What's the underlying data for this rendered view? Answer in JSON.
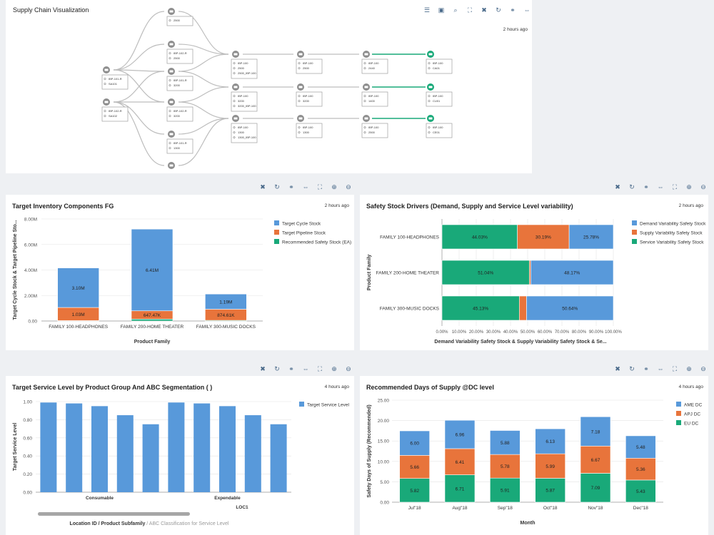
{
  "supply_chain": {
    "title": "Supply Chain Visualization",
    "timestamp": "2 hours ago",
    "toolbar_icons": [
      "list-icon",
      "select-icon",
      "zoom-icon",
      "fullscreen-icon",
      "delete-icon",
      "refresh-icon",
      "link-icon",
      "split-icon"
    ],
    "nodes": [
      {
        "id": "n_top",
        "lines": [
          "2500"
        ]
      },
      {
        "id": "n_b1",
        "lines": [
          "IBP-102-R",
          "2500"
        ]
      },
      {
        "id": "n_b2",
        "lines": [
          "IBP-101-R",
          "3200"
        ]
      },
      {
        "id": "n_b3",
        "lines": [
          "IBP-102-R",
          "3200"
        ]
      },
      {
        "id": "n_b4",
        "lines": [
          "IBP-101-R",
          "1300"
        ]
      },
      {
        "id": "n_a1",
        "lines": [
          "IBP-101-R",
          "SA101"
        ]
      },
      {
        "id": "n_a2",
        "lines": [
          "IBP-102-R",
          "SA102"
        ]
      },
      {
        "id": "n_c1",
        "lines": [
          "IBP-100",
          "2500",
          "2500_IBP-100"
        ]
      },
      {
        "id": "n_c2",
        "lines": [
          "IBP-100",
          "3200",
          "3200_IBP-100"
        ]
      },
      {
        "id": "n_c3",
        "lines": [
          "IBP-100",
          "1300",
          "1300_IBP-100"
        ]
      },
      {
        "id": "n_d1",
        "lines": [
          "IBP-100",
          "2500"
        ]
      },
      {
        "id": "n_d2",
        "lines": [
          "IBP-100",
          "3200"
        ]
      },
      {
        "id": "n_d3",
        "lines": [
          "IBP-100",
          "1300"
        ]
      },
      {
        "id": "n_e1",
        "lines": [
          "IBP-100",
          "2440"
        ]
      },
      {
        "id": "n_e2",
        "lines": [
          "IBP-100",
          "1400"
        ]
      },
      {
        "id": "n_e3",
        "lines": [
          "IBP-100",
          "2500"
        ]
      },
      {
        "id": "n_f1",
        "lines": [
          "IBP-100",
          "CA01"
        ]
      },
      {
        "id": "n_f2",
        "lines": [
          "IBP-100",
          "CU01"
        ]
      },
      {
        "id": "n_f3",
        "lines": [
          "IBP-100",
          "CE01"
        ]
      }
    ]
  },
  "panel_toolbar_icons": [
    "delete-icon",
    "refresh-icon",
    "link-icon",
    "split-icon",
    "fullscreen-icon",
    "zoom-in-icon",
    "zoom-out-icon"
  ],
  "colors": {
    "blue": "#5899da",
    "orange": "#e8743b",
    "green": "#19a979",
    "gray": "#a6a6a6"
  },
  "chart_data": [
    {
      "id": "target_inventory",
      "type": "bar",
      "stacked": true,
      "title": "Target Inventory Components FG",
      "timestamp": "2 hours ago",
      "categories": [
        "FAMILY 100-HEADPHONES",
        "FAMILY 200-HOME THEATER",
        "FAMILY 300-MUSIC DOCKS"
      ],
      "series": [
        {
          "name": "Recommended Safety Stock (EA)",
          "color": "#19a979",
          "values": [
            0.03,
            0.15,
            0.05
          ],
          "labels": [
            "",
            "",
            ""
          ]
        },
        {
          "name": "Target Pipeline Stock",
          "color": "#e8743b",
          "values": [
            1.03,
            0.64747,
            0.87461
          ],
          "labels": [
            "1.03M",
            "647.47K",
            "874.61K"
          ]
        },
        {
          "name": "Target Cycle Stock",
          "color": "#5899da",
          "values": [
            3.1,
            6.41,
            1.19
          ],
          "labels": [
            "3.10M",
            "6.41M",
            "1.19M"
          ]
        }
      ],
      "legend_order": [
        "Target Cycle Stock",
        "Target Pipeline Stock",
        "Recommended Safety Stock (EA)"
      ],
      "ylim": [
        0,
        8
      ],
      "yticks": [
        "0.00",
        "2.00M",
        "4.00M",
        "6.00M",
        "8.00M"
      ],
      "xlabel": "Product Family",
      "ylabel": "Target Cycle Stock & Target Pipeline Sto..."
    },
    {
      "id": "safety_stock_drivers",
      "type": "bar",
      "orientation": "horizontal",
      "stacked": true,
      "title": "Safety Stock Drivers (Demand, Supply and Service Level variability)",
      "timestamp": "2 hours ago",
      "categories": [
        "FAMILY 100-HEADPHONES",
        "FAMILY 200-HOME THEATER",
        "FAMILY 300-MUSIC DOCKS"
      ],
      "series": [
        {
          "name": "Service Variability Safety Stock",
          "color": "#19a979",
          "values": [
            44.03,
            51.04,
            45.13
          ],
          "labels": [
            "44.03%",
            "51.04%",
            "45.13%"
          ]
        },
        {
          "name": "Supply Variability Safety Stock",
          "color": "#e8743b",
          "values": [
            30.19,
            0.79,
            4.23
          ],
          "labels": [
            "30.19%",
            "",
            ""
          ]
        },
        {
          "name": "Demand Variability Safety Stock",
          "color": "#5899da",
          "values": [
            25.78,
            48.17,
            50.64
          ],
          "labels": [
            "25.78%",
            "48.17%",
            "50.64%"
          ]
        }
      ],
      "legend_order": [
        "Demand Variability Safety Stock",
        "Supply Variability Safety Stock",
        "Service Variability Safety Stock"
      ],
      "xlim": [
        0,
        100
      ],
      "xticks": [
        "0.00%",
        "10.00%",
        "20.00%",
        "30.00%",
        "40.00%",
        "50.00%",
        "60.00%",
        "70.00%",
        "80.00%",
        "90.00%",
        "100.00%"
      ],
      "xlabel": "Demand Variability Safety Stock & Supply Variability Safety Stock & Se...",
      "ylabel": "Product Family"
    },
    {
      "id": "target_service_level",
      "type": "bar",
      "title": "Target Service Level by Product Group And ABC Segmentation ( )",
      "timestamp": "4 hours ago",
      "series": [
        {
          "name": "Target Service Level",
          "color": "#5899da",
          "values": [
            0.99,
            0.98,
            0.95,
            0.85,
            0.75,
            0.99,
            0.98,
            0.95,
            0.85,
            0.75
          ]
        }
      ],
      "groups": [
        "Consumable",
        "Expendable"
      ],
      "group_size": 5,
      "outer_label": "LOC1",
      "ylim": [
        0,
        1
      ],
      "yticks": [
        "0.00",
        "0.20",
        "0.40",
        "0.60",
        "0.80",
        "1.00"
      ],
      "xlabel_main": "Location ID / Product Subfamily",
      "xlabel_secondary": "/ ABC Classification for Service Level",
      "ylabel": "Target Service Level"
    },
    {
      "id": "days_of_supply",
      "type": "bar",
      "stacked": true,
      "title": "Recommended Days of Supply @DC level",
      "timestamp": "4 hours ago",
      "categories": [
        "Jul\"18",
        "Aug\"18",
        "Sep\"18",
        "Oct\"18",
        "Nov\"18",
        "Dec\"18"
      ],
      "series": [
        {
          "name": "EU DC",
          "color": "#19a979",
          "values": [
            5.82,
            6.71,
            5.91,
            5.87,
            7.09,
            5.43
          ],
          "labels": [
            "5.82",
            "6.71",
            "5.91",
            "5.87",
            "7.09",
            "5.43"
          ]
        },
        {
          "name": "APJ DC",
          "color": "#e8743b",
          "values": [
            5.66,
            6.41,
            5.78,
            5.99,
            6.67,
            5.36
          ],
          "labels": [
            "5.66",
            "6.41",
            "5.78",
            "5.99",
            "6.67",
            "5.36"
          ]
        },
        {
          "name": "AME DC",
          "color": "#5899da",
          "values": [
            6.0,
            6.96,
            5.88,
            6.13,
            7.18,
            5.48
          ],
          "labels": [
            "6.00",
            "6.96",
            "5.88",
            "6.13",
            "7.18",
            "5.48"
          ]
        }
      ],
      "legend_order": [
        "AME DC",
        "APJ DC",
        "EU DC"
      ],
      "ylim": [
        0,
        25
      ],
      "yticks": [
        "0.00",
        "5.00",
        "10.00",
        "15.00",
        "20.00",
        "25.00"
      ],
      "xlabel": "Month",
      "ylabel": "Safety Days of Supply (Recommended)"
    }
  ]
}
